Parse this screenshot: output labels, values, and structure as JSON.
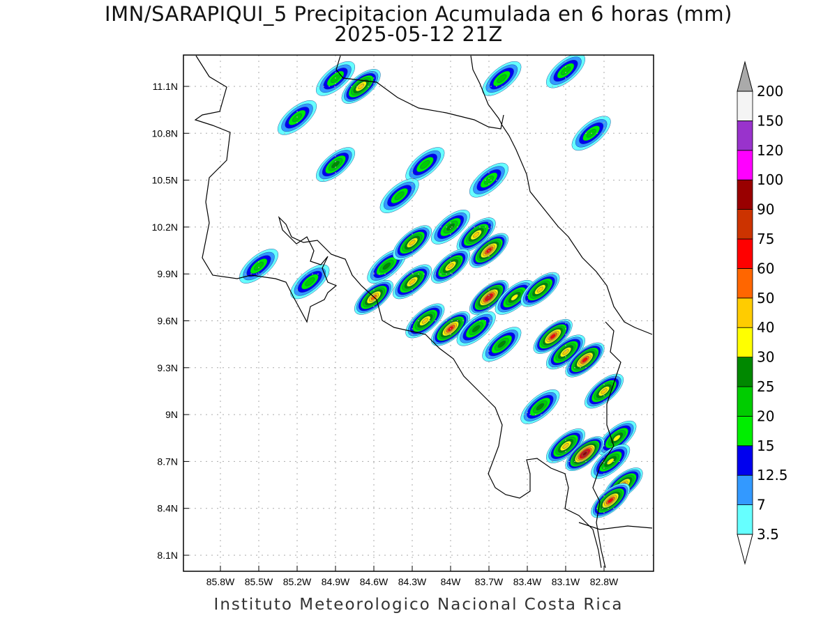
{
  "title": {
    "line1": "IMN/SARAPIQUI_5 Precipitacion Acumulada en 6 horas (mm)",
    "line2": "2025-05-12 21Z"
  },
  "footer": "Instituto Meteorologico Nacional Costa Rica",
  "axes": {
    "lat_ticks": [
      "11.1N",
      "10.8N",
      "10.5N",
      "10.2N",
      "9.9N",
      "9.6N",
      "9.3N",
      "9N",
      "8.7N",
      "8.4N",
      "8.1N"
    ],
    "lon_ticks": [
      "85.8W",
      "85.5W",
      "85.2W",
      "84.9W",
      "84.6W",
      "84.3W",
      "84W",
      "83.7W",
      "83.4W",
      "83.1W",
      "82.8W"
    ]
  },
  "colorbar": {
    "levels": [
      "3.5",
      "7",
      "12.5",
      "15",
      "20",
      "25",
      "30",
      "40",
      "50",
      "60",
      "75",
      "90",
      "100",
      "120",
      "150",
      "200"
    ],
    "colors": [
      "#66ffff",
      "#3399ff",
      "#0000ee",
      "#00ee00",
      "#00cc00",
      "#008800",
      "#ffff00",
      "#ffcc00",
      "#ff6600",
      "#ff0000",
      "#cc3300",
      "#990000",
      "#ff00ff",
      "#9933cc",
      "#f4f4f4",
      "#aaaaaa"
    ]
  },
  "precip_cells": [
    {
      "lon": -84.9,
      "lat": 11.15,
      "peak": 20
    },
    {
      "lon": -84.7,
      "lat": 11.1,
      "peak": 40
    },
    {
      "lon": -85.2,
      "lat": 10.9,
      "peak": 20
    },
    {
      "lon": -84.9,
      "lat": 10.6,
      "peak": 25
    },
    {
      "lon": -84.2,
      "lat": 10.6,
      "peak": 20
    },
    {
      "lon": -83.6,
      "lat": 11.15,
      "peak": 20
    },
    {
      "lon": -83.1,
      "lat": 11.2,
      "peak": 20
    },
    {
      "lon": -82.9,
      "lat": 10.8,
      "peak": 20
    },
    {
      "lon": -84.4,
      "lat": 10.4,
      "peak": 20
    },
    {
      "lon": -83.7,
      "lat": 10.5,
      "peak": 20
    },
    {
      "lon": -85.5,
      "lat": 9.95,
      "peak": 20
    },
    {
      "lon": -85.1,
      "lat": 9.85,
      "peak": 20
    },
    {
      "lon": -84.5,
      "lat": 9.95,
      "peak": 25
    },
    {
      "lon": -84.6,
      "lat": 9.75,
      "peak": 50
    },
    {
      "lon": -84.3,
      "lat": 10.1,
      "peak": 40
    },
    {
      "lon": -84.0,
      "lat": 10.2,
      "peak": 25
    },
    {
      "lon": -83.8,
      "lat": 10.15,
      "peak": 40
    },
    {
      "lon": -83.7,
      "lat": 10.05,
      "peak": 60
    },
    {
      "lon": -84.0,
      "lat": 9.95,
      "peak": 40
    },
    {
      "lon": -84.3,
      "lat": 9.85,
      "peak": 40
    },
    {
      "lon": -83.7,
      "lat": 9.75,
      "peak": 75
    },
    {
      "lon": -83.5,
      "lat": 9.75,
      "peak": 30
    },
    {
      "lon": -83.3,
      "lat": 9.8,
      "peak": 40
    },
    {
      "lon": -84.0,
      "lat": 9.55,
      "peak": 60
    },
    {
      "lon": -84.2,
      "lat": 9.6,
      "peak": 40
    },
    {
      "lon": -83.8,
      "lat": 9.55,
      "peak": 25
    },
    {
      "lon": -83.2,
      "lat": 9.5,
      "peak": 60
    },
    {
      "lon": -83.1,
      "lat": 9.4,
      "peak": 40
    },
    {
      "lon": -82.95,
      "lat": 9.35,
      "peak": 60
    },
    {
      "lon": -82.8,
      "lat": 9.15,
      "peak": 40
    },
    {
      "lon": -82.7,
      "lat": 8.85,
      "peak": 30
    },
    {
      "lon": -83.1,
      "lat": 8.8,
      "peak": 40
    },
    {
      "lon": -82.95,
      "lat": 8.75,
      "peak": 90
    },
    {
      "lon": -82.75,
      "lat": 8.7,
      "peak": 30
    },
    {
      "lon": -82.65,
      "lat": 8.55,
      "peak": 50
    },
    {
      "lon": -82.75,
      "lat": 8.45,
      "peak": 60
    },
    {
      "lon": -83.3,
      "lat": 9.05,
      "peak": 25
    },
    {
      "lon": -83.6,
      "lat": 9.45,
      "peak": 25
    }
  ]
}
